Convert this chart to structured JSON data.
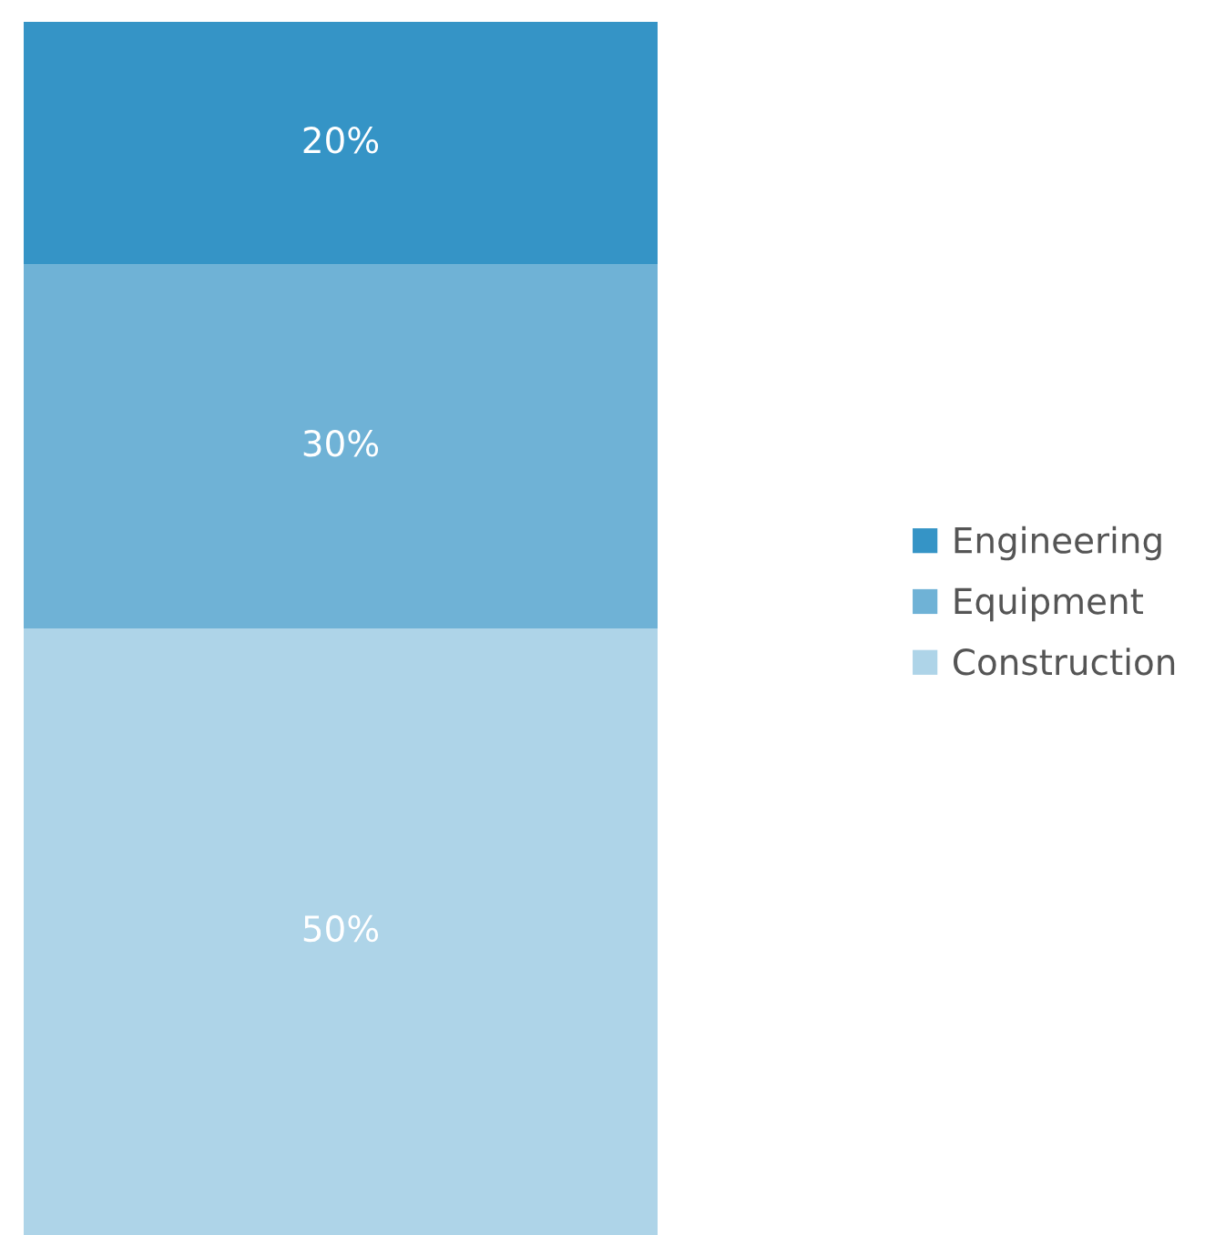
{
  "chart_data": {
    "type": "bar",
    "stacked": true,
    "categories": [
      null
    ],
    "series": [
      {
        "name": "Construction",
        "color": "#aed4e8",
        "values": [
          50
        ],
        "value_labels": [
          "50%"
        ]
      },
      {
        "name": "Equipment",
        "color": "#6fb2d6",
        "values": [
          30
        ],
        "value_labels": [
          "30%"
        ]
      },
      {
        "name": "Engineering",
        "color": "#3594c6",
        "values": [
          20
        ],
        "value_labels": [
          "20%"
        ]
      }
    ],
    "legend": "right"
  }
}
